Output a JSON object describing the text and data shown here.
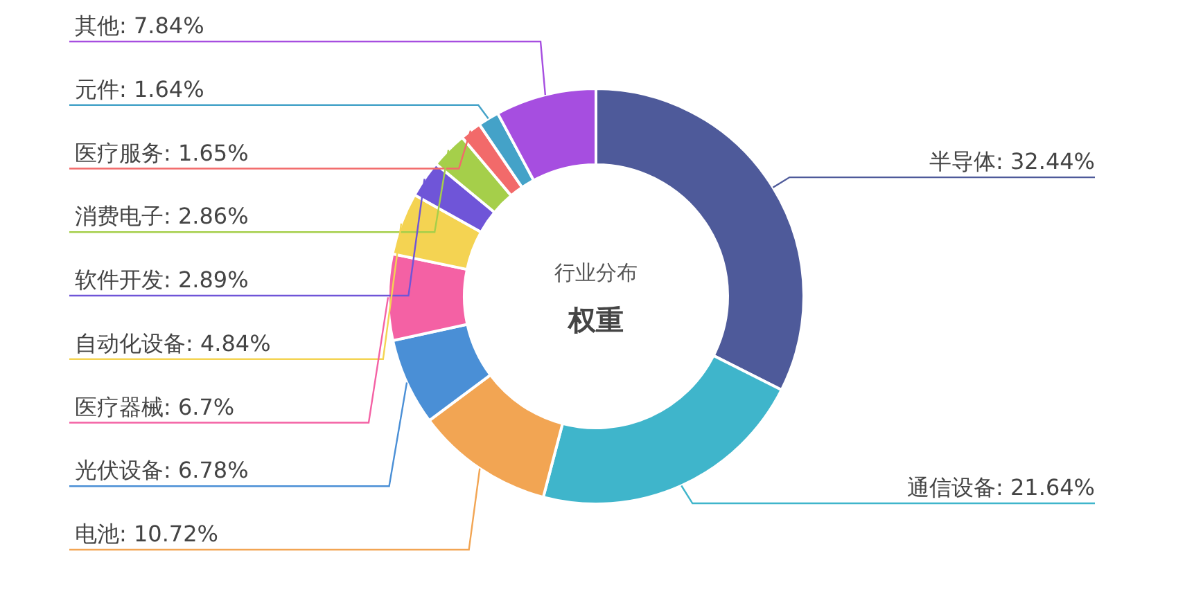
{
  "chart_data": {
    "type": "donut",
    "title": "行业分布",
    "subtitle": "权重",
    "value_labels": [
      ": 32.44%",
      ": 21.64%",
      ": 10.72%",
      ": 6.78%",
      ": 6.7%",
      ": 4.84%",
      ": 2.89%",
      ": 2.86%",
      ": 1.65%",
      ": 1.64%",
      ": 7.84%"
    ],
    "categories": [
      "半导体",
      "通信设备",
      "电池",
      "光伏设备",
      "医疗器械",
      "自动化设备",
      "软件开发",
      "消费电子",
      "医疗服务",
      "元件",
      "其他"
    ],
    "values": [
      32.44,
      21.64,
      10.72,
      6.78,
      6.7,
      4.84,
      2.89,
      2.86,
      1.65,
      1.64,
      7.84
    ],
    "colors": [
      "#4e5a9a",
      "#3fb5cb",
      "#f2a553",
      "#4a8fd6",
      "#f461a4",
      "#f4d352",
      "#6f55d8",
      "#a5cf4a",
      "#f26a6a",
      "#44a2c8",
      "#a64ee0"
    ]
  }
}
